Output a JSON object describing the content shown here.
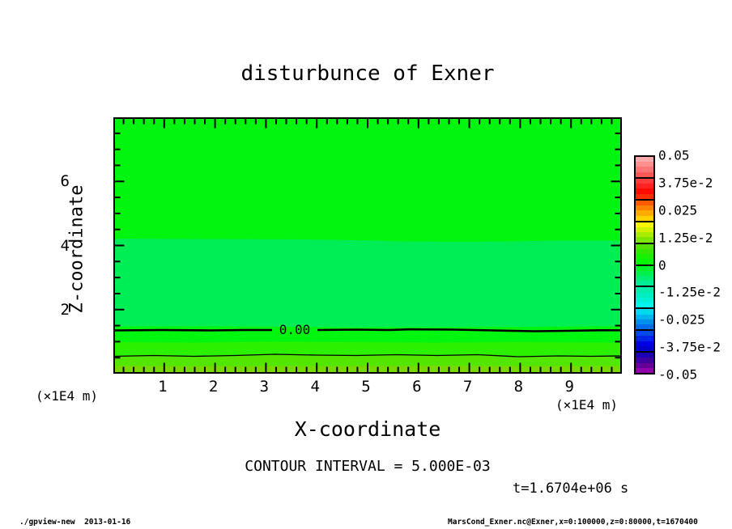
{
  "title": "disturbunce of Exner",
  "plot": {
    "x_axis": {
      "label": "X-coordinate",
      "units_label": "(×1E4 m)"
    },
    "y_axis": {
      "label": "Z-coordinate",
      "units_label": "(×1E4 m)"
    },
    "zero_contour_label": "0.00"
  },
  "annotations": {
    "contour_interval": "CONTOUR INTERVAL = 5.000E-03",
    "time": "t=1.6704e+06 s"
  },
  "footer": {
    "left": "./gpview-new  2013-01-16",
    "right": "MarsCond_Exner.nc@Exner,x=0:100000,z=0:80000,t=1670400"
  },
  "colors": {
    "background": "#FFFFFF",
    "frame": "#000000",
    "contour_line": "#000000",
    "plot_pos_band1": "#00F50F",
    "plot_neg_band1": "#00EE55",
    "plot_pos_band2": "#2BF000",
    "plot_pos_band3": "#52E600",
    "plot_pos_band4": "#78D900"
  },
  "colorbar": {
    "tick_labels": [
      "0.05",
      "3.75e-2",
      "0.025",
      "1.25e-2",
      "0",
      "-1.25e-2",
      "-0.025",
      "-3.75e-2",
      "-0.05"
    ],
    "band_colors": [
      "#FFAAAA",
      "#FF9090",
      "#FF7474",
      "#FF5656",
      "#FF3C3C",
      "#FF2222",
      "#FF0C00",
      "#FF2E00",
      "#FF5A00",
      "#FF8200",
      "#FFAA00",
      "#FFD200",
      "#FAF600",
      "#D2F000",
      "#A8EC00",
      "#7EE600",
      "#55E000",
      "#33E800",
      "#19F000",
      "#00F600",
      "#00F32A",
      "#00F04E",
      "#00EE72",
      "#00EC96",
      "#00EDAC",
      "#00EFC2",
      "#00F1D8",
      "#00F4EE",
      "#00D8F0",
      "#00B4EE",
      "#0090EC",
      "#006CEA",
      "#0048E8",
      "#0024E6",
      "#0000E4",
      "#0000CE",
      "#1C00B2",
      "#4000A2",
      "#640096",
      "#9000AA"
    ]
  },
  "chart_data": {
    "type": "heatmap",
    "title": "disturbunce of Exner",
    "xlabel": "X-coordinate",
    "ylabel": "Z-coordinate",
    "x_units": "×1E4 m",
    "y_units": "×1E4 m",
    "x_range": [
      0,
      10
    ],
    "y_range": [
      0,
      8
    ],
    "x_ticks": [
      1,
      2,
      3,
      4,
      5,
      6,
      7,
      8,
      9
    ],
    "y_ticks": [
      2,
      4,
      6
    ],
    "value_range": [
      -0.05,
      0.05
    ],
    "colorbar_tick_values": [
      0.05,
      0.0375,
      0.025,
      0.0125,
      0,
      -0.0125,
      -0.025,
      -0.0375,
      -0.05
    ],
    "contour_interval": 0.005,
    "time_seconds": 1670400,
    "contour_lines": [
      {
        "value": 0,
        "label": "0.00",
        "z_approx_x1e4_m": 1.4
      },
      {
        "value": 0.005,
        "label": null,
        "z_approx_x1e4_m": 0.55
      }
    ],
    "tone_regions_top_to_bottom": [
      {
        "z_from": 8.0,
        "z_to": 4.2,
        "value_band": [
          0,
          0.0025
        ]
      },
      {
        "z_from": 4.2,
        "z_to": 1.45,
        "value_band": [
          -0.0025,
          0
        ]
      },
      {
        "z_from": 1.45,
        "z_to": 0.95,
        "value_band": [
          0,
          0.0025
        ]
      },
      {
        "z_from": 0.95,
        "z_to": 0.55,
        "value_band": [
          0.0025,
          0.005
        ]
      },
      {
        "z_from": 0.55,
        "z_to": 0.25,
        "value_band": [
          0.005,
          0.0075
        ]
      },
      {
        "z_from": 0.25,
        "z_to": 0.0,
        "value_band": [
          0.0075,
          0.01
        ]
      }
    ]
  }
}
